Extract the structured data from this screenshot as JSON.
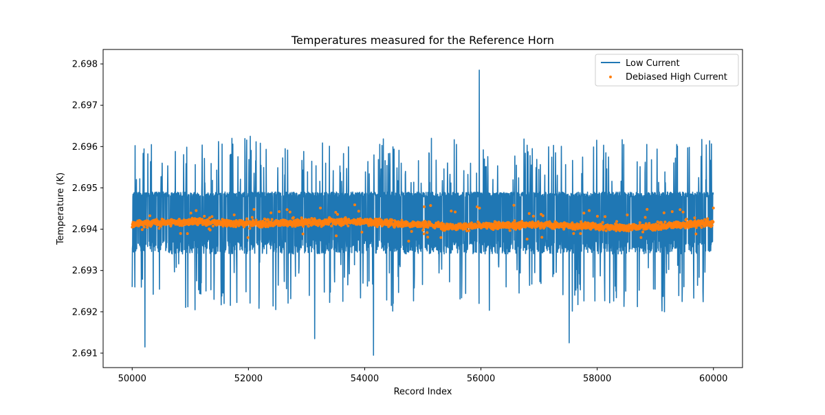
{
  "chart_data": {
    "type": "line",
    "title": "Temperatures measured for the Reference Horn",
    "xlabel": "Record Index",
    "ylabel": "Temperature (K)",
    "xlim": [
      49500,
      60500
    ],
    "ylim": [
      2.69065,
      2.69835
    ],
    "xticks": [
      50000,
      52000,
      54000,
      56000,
      58000,
      60000
    ],
    "xtick_labels": [
      "50000",
      "52000",
      "54000",
      "56000",
      "58000",
      "60000"
    ],
    "yticks": [
      2.691,
      2.692,
      2.693,
      2.694,
      2.695,
      2.696,
      2.697,
      2.698
    ],
    "ytick_labels": [
      "2.691",
      "2.692",
      "2.693",
      "2.694",
      "2.695",
      "2.696",
      "2.697",
      "2.698"
    ],
    "legend_position": "top-right",
    "series": [
      {
        "name": "Low Current",
        "kind": "line",
        "color": "#1f77b4",
        "x_start": 50000,
        "x_end": 60000,
        "baseline": 2.6941,
        "band_low": 2.6934,
        "band_high": 2.6949,
        "notable_spikes": [
          {
            "x": 55970,
            "y": 2.69785
          },
          {
            "x": 52030,
            "y": 2.69625
          },
          {
            "x": 55150,
            "y": 2.6962
          },
          {
            "x": 59370,
            "y": 2.69605
          },
          {
            "x": 54150,
            "y": 2.69095
          },
          {
            "x": 50220,
            "y": 2.69115
          },
          {
            "x": 53140,
            "y": 2.69135
          },
          {
            "x": 57520,
            "y": 2.69125
          }
        ]
      },
      {
        "name": "Debiased High Current",
        "kind": "scatter",
        "color": "#ff7f0e",
        "x_start": 50000,
        "x_end": 60000,
        "baseline": 2.69412,
        "band_low": 2.69395,
        "band_high": 2.69435,
        "outlier_range": [
          2.6937,
          2.6946
        ]
      }
    ]
  }
}
